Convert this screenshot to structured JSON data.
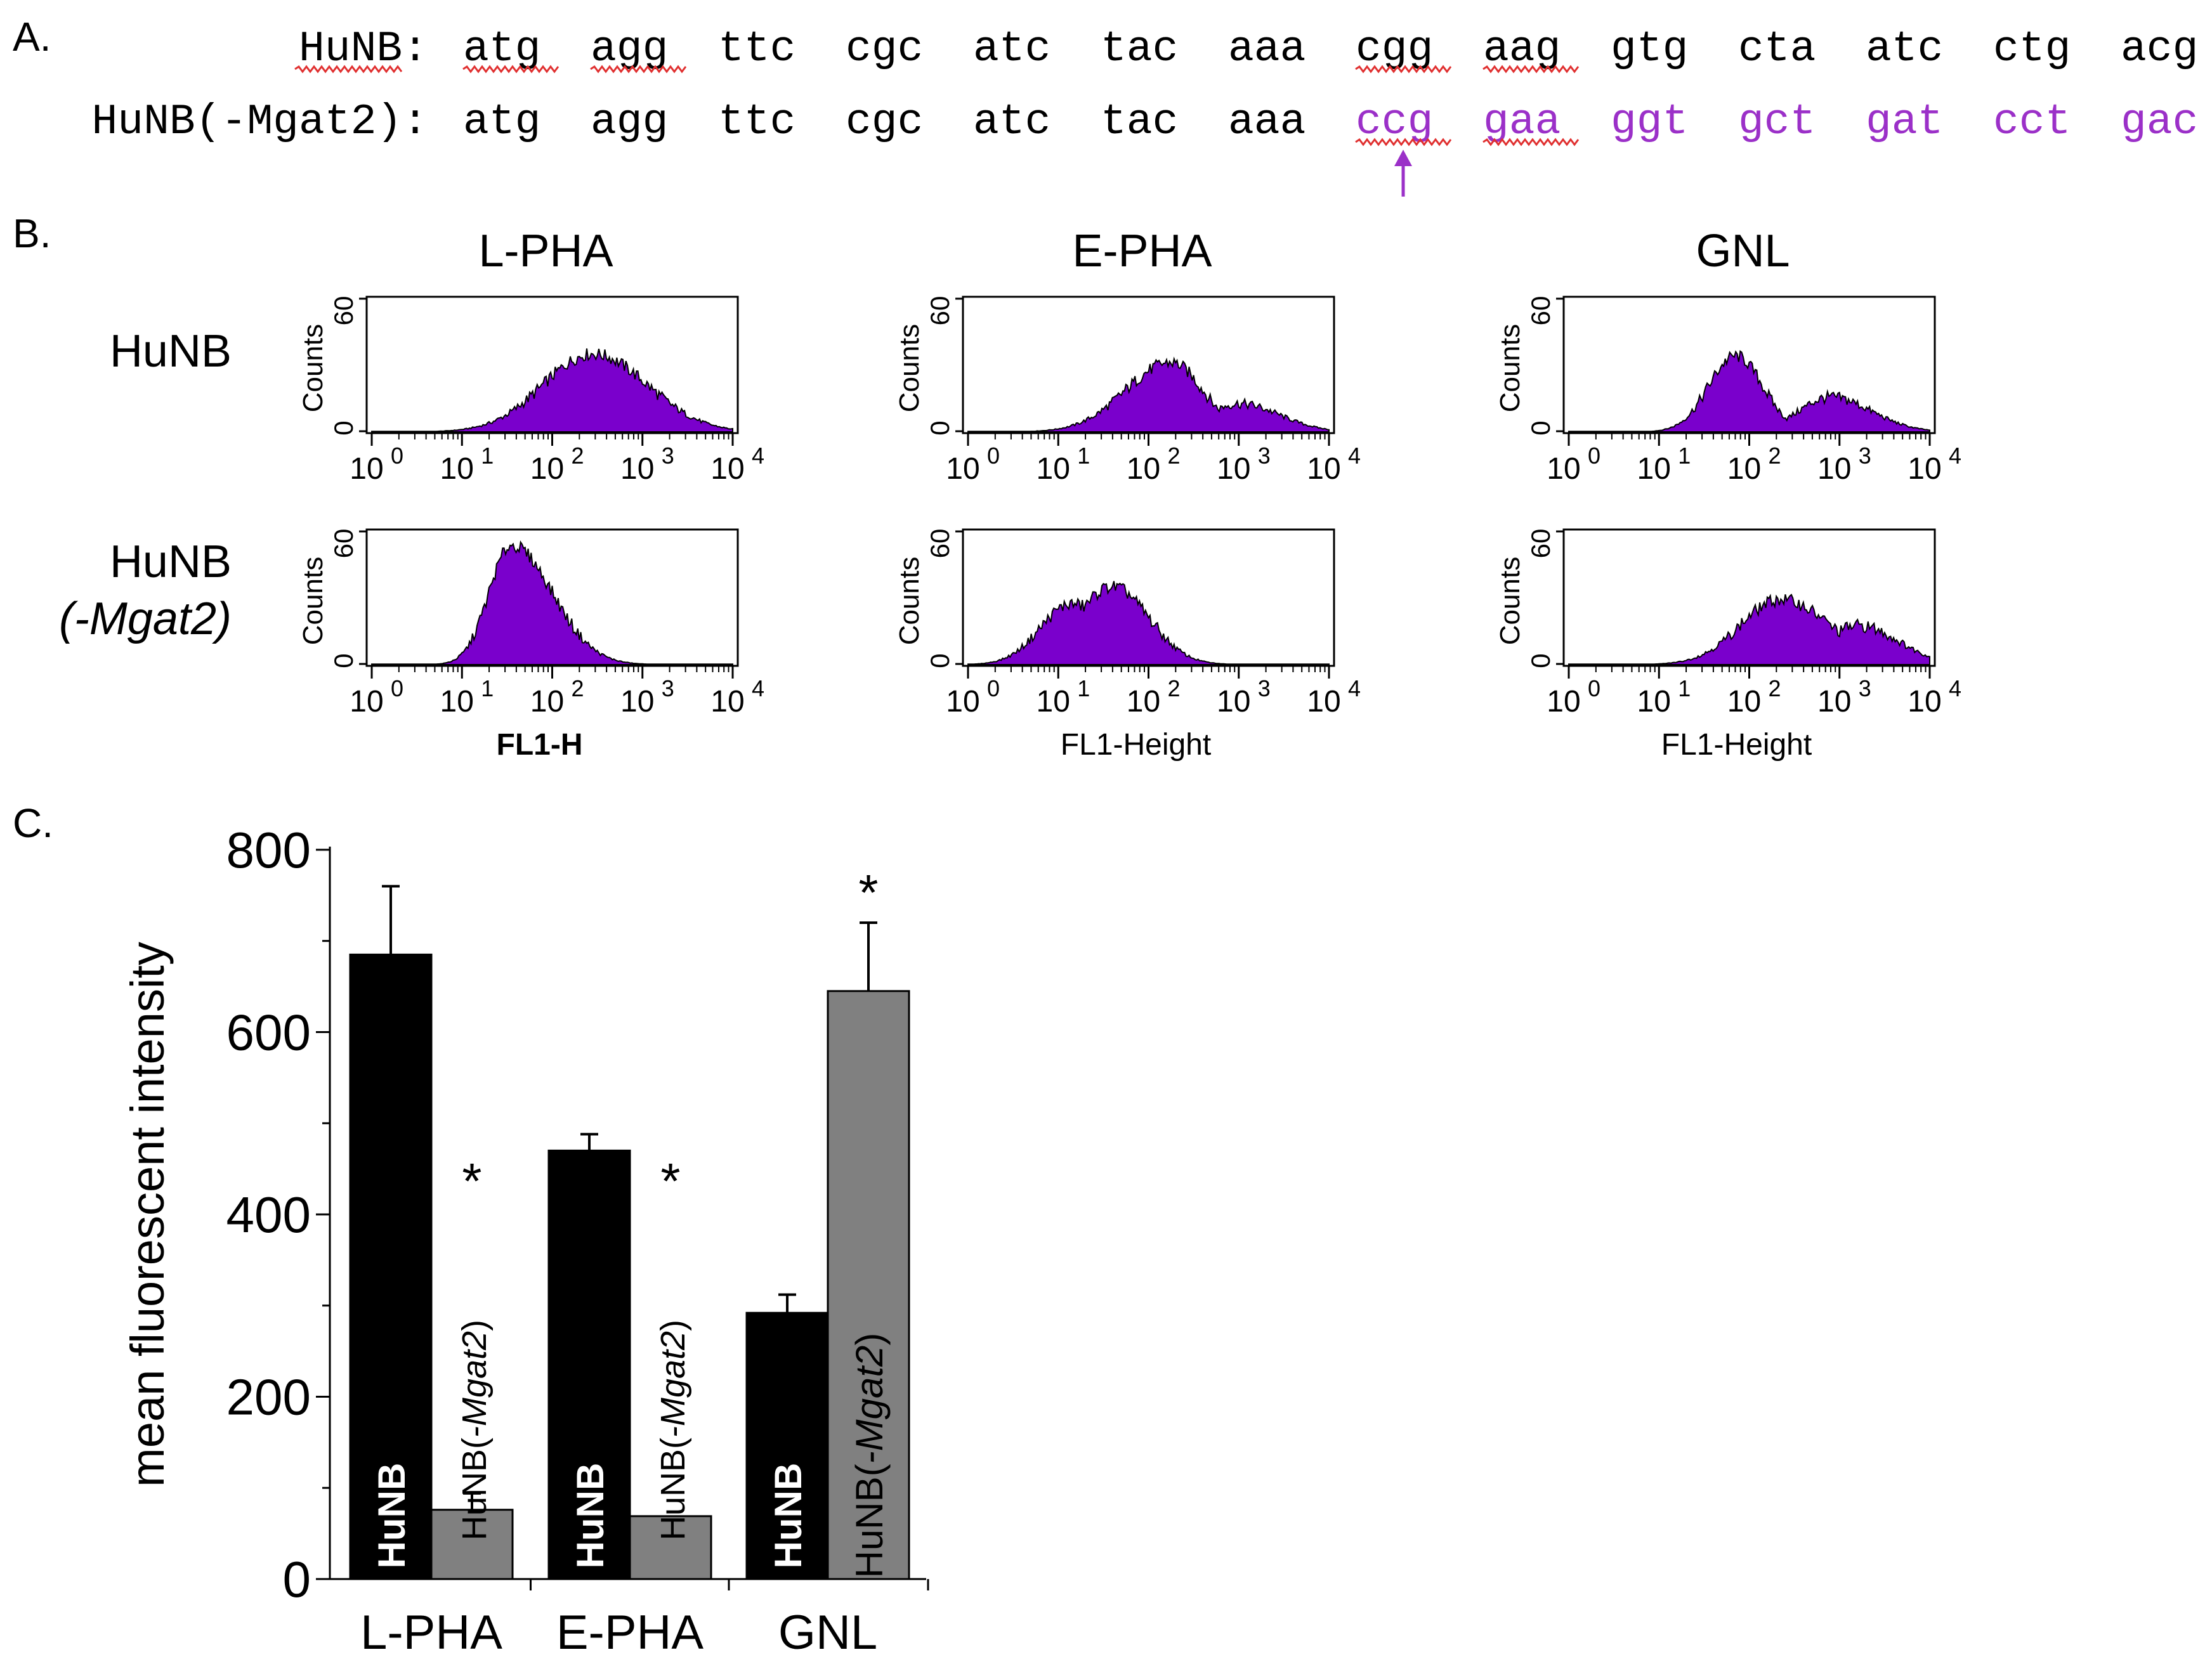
{
  "panel_labels": {
    "a": "A.",
    "b": "B.",
    "c": "C."
  },
  "sequence": {
    "rows": [
      {
        "label": "HuNB:",
        "label_squiggle": true,
        "codons": [
          "atg",
          "agg",
          "ttc",
          "cgc",
          "atc",
          "tac",
          "aaa",
          "cgg",
          "aag",
          "gtg",
          "cta",
          "atc",
          "ctg",
          "acg"
        ],
        "highlight_from": 14,
        "squiggle": [
          0,
          1,
          7,
          8
        ]
      },
      {
        "label": "HuNB(-Mgat2):",
        "label_squiggle": false,
        "codons": [
          "atg",
          "agg",
          "ttc",
          "cgc",
          "atc",
          "tac",
          "aaa",
          "ccg",
          "gaa",
          "ggt",
          "gct",
          "gat",
          "cct",
          "gac"
        ],
        "highlight_from": 7,
        "squiggle": [
          7,
          8
        ]
      }
    ],
    "arrow_codon_index": 7,
    "colors": {
      "text": "#000000",
      "mutant": "#9b30c8",
      "squiggle": "#e03030"
    }
  },
  "histograms": {
    "fill_color": "#7a00cc",
    "y_axis_label": "Counts",
    "y_ticks": [
      "0",
      "60"
    ],
    "x_tick_base": "10",
    "x_tick_exponents": [
      "0",
      "1",
      "2",
      "3",
      "4"
    ],
    "columns": [
      {
        "title": "L-PHA",
        "xlabel": "FL1-H"
      },
      {
        "title": "E-PHA",
        "xlabel": "FL1-Height"
      },
      {
        "title": "GNL",
        "xlabel": "FL1-Height"
      }
    ],
    "rows": [
      {
        "label_lines": [
          "HuNB"
        ],
        "italic_line": null
      },
      {
        "label_lines": [
          "HuNB",
          "(-Mgat2)"
        ],
        "italic_line": 1
      }
    ],
    "panels": [
      [
        {
          "peak_log": 2.45,
          "peak": 36,
          "width_left": 0.55,
          "width_right": 0.6,
          "second_log": null,
          "second": 0
        },
        {
          "peak_log": 2.25,
          "peak": 32,
          "width_left": 0.5,
          "width_right": 0.35,
          "second_log": 3.0,
          "second": 13
        },
        {
          "peak_log": 1.85,
          "peak": 35,
          "width_left": 0.3,
          "width_right": 0.3,
          "second_log": 2.9,
          "second": 16
        }
      ],
      [
        {
          "peak_log": 1.55,
          "peak": 55,
          "width_left": 0.25,
          "width_right": 0.45,
          "second_log": null,
          "second": 0
        },
        {
          "peak_log": 1.6,
          "peak": 36,
          "width_left": 0.4,
          "width_right": 0.4,
          "second_log": 1.15,
          "second": 28
        },
        {
          "peak_log": 2.35,
          "peak": 30,
          "width_left": 0.45,
          "width_right": 0.55,
          "second_log": 3.2,
          "second": 18
        }
      ]
    ]
  },
  "chart_data": {
    "type": "bar",
    "title": "",
    "xlabel": "",
    "ylabel": "mean fluorescent intensity",
    "ylim": [
      0,
      800
    ],
    "yticks": [
      0,
      200,
      400,
      600,
      800
    ],
    "categories": [
      "L-PHA",
      "E-PHA",
      "GNL"
    ],
    "series": [
      {
        "name": "HuNB",
        "color": "#000000",
        "values": [
          685,
          470,
          292
        ],
        "errors": [
          75,
          18,
          20
        ]
      },
      {
        "name": "HuNB(-Mgat2)",
        "color": "#808080",
        "values": [
          76,
          69,
          645
        ],
        "errors": [
          18,
          0,
          75
        ]
      }
    ],
    "significance": [
      "*",
      "*",
      "*"
    ],
    "significance_series": 1,
    "bar_labels": [
      {
        "text": "HuNB",
        "italic": ""
      },
      {
        "text": "HuNB(",
        "italic": "-Mgat2",
        "suffix": ")"
      }
    ]
  }
}
